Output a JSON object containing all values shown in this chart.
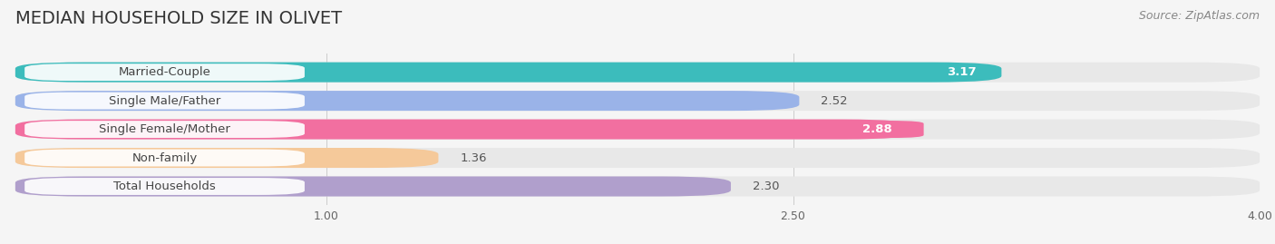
{
  "title": "MEDIAN HOUSEHOLD SIZE IN OLIVET",
  "source": "Source: ZipAtlas.com",
  "categories": [
    "Married-Couple",
    "Single Male/Father",
    "Single Female/Mother",
    "Non-family",
    "Total Households"
  ],
  "values": [
    3.17,
    2.52,
    2.88,
    1.36,
    2.3
  ],
  "bar_colors": [
    "#3cbcbc",
    "#9ab3e8",
    "#f26fa0",
    "#f5c99a",
    "#b09fcc"
  ],
  "xlim_min": 0,
  "xlim_max": 4.0,
  "xticks": [
    1.0,
    2.5,
    4.0
  ],
  "xtick_labels": [
    "1.00",
    "2.50",
    "4.00"
  ],
  "bg_color": "#f5f5f5",
  "bar_bg_color": "#e8e8e8",
  "bar_height": 0.7,
  "title_fontsize": 14,
  "source_fontsize": 9,
  "label_fontsize": 9.5,
  "value_fontsize": 9.5
}
